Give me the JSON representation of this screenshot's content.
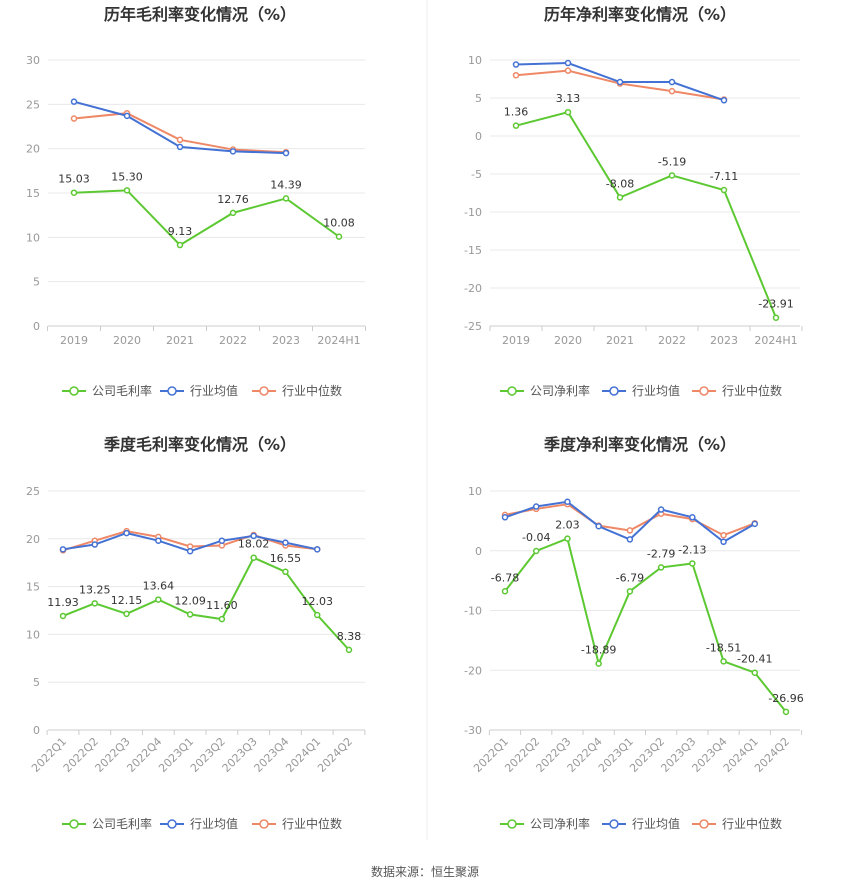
{
  "colors": {
    "company": "#5cc832",
    "industry_avg": "#4472d4",
    "industry_median": "#ee8866",
    "grid": "#e8e8e8",
    "axis": "#999999"
  },
  "legend": {
    "gross": "公司毛利率",
    "net": "公司净利率",
    "avg": "行业均值",
    "median": "行业中位数"
  },
  "source": "数据来源：恒生聚源",
  "chart_data": [
    {
      "type": "line",
      "title": "历年毛利率变化情况（%）",
      "categories": [
        "2019",
        "2020",
        "2021",
        "2022",
        "2023",
        "2024H1"
      ],
      "ylim": [
        0,
        30
      ],
      "yticks": [
        0,
        5,
        10,
        15,
        20,
        25,
        30
      ],
      "rotate_xticks": false,
      "series": [
        {
          "key": "company",
          "name": "公司毛利率",
          "values": [
            15.03,
            15.3,
            9.13,
            12.76,
            14.39,
            10.08
          ],
          "labels": [
            "15.03",
            "15.30",
            "9.13",
            "12.76",
            "14.39",
            "10.08"
          ]
        },
        {
          "key": "industry_avg",
          "name": "行业均值",
          "values": [
            25.3,
            23.7,
            20.2,
            19.7,
            19.5,
            null
          ]
        },
        {
          "key": "industry_median",
          "name": "行业中位数",
          "values": [
            23.4,
            24.0,
            21.0,
            19.9,
            19.6,
            null
          ]
        }
      ]
    },
    {
      "type": "line",
      "title": "历年净利率变化情况（%）",
      "categories": [
        "2019",
        "2020",
        "2021",
        "2022",
        "2023",
        "2024H1"
      ],
      "ylim": [
        -25,
        10
      ],
      "yticks": [
        -25,
        -20,
        -15,
        -10,
        -5,
        0,
        5,
        10
      ],
      "rotate_xticks": false,
      "series": [
        {
          "key": "company",
          "name": "公司净利率",
          "values": [
            1.36,
            3.13,
            -8.08,
            -5.19,
            -7.11,
            -23.91
          ],
          "labels": [
            "1.36",
            "3.13",
            "-8.08",
            "-5.19",
            "-7.11",
            "-23.91"
          ]
        },
        {
          "key": "industry_avg",
          "name": "行业均值",
          "values": [
            9.4,
            9.6,
            7.1,
            7.1,
            4.7,
            null
          ]
        },
        {
          "key": "industry_median",
          "name": "行业中位数",
          "values": [
            8.0,
            8.6,
            6.9,
            5.9,
            4.8,
            null
          ]
        }
      ]
    },
    {
      "type": "line",
      "title": "季度毛利率变化情况（%）",
      "categories": [
        "2022Q1",
        "2022Q2",
        "2022Q3",
        "2022Q4",
        "2023Q1",
        "2023Q2",
        "2023Q3",
        "2023Q4",
        "2024Q1",
        "2024Q2"
      ],
      "ylim": [
        0,
        25
      ],
      "yticks": [
        0,
        5,
        10,
        15,
        20,
        25
      ],
      "rotate_xticks": true,
      "series": [
        {
          "key": "company",
          "name": "公司毛利率",
          "values": [
            11.93,
            13.25,
            12.15,
            13.64,
            12.09,
            11.6,
            18.02,
            16.55,
            12.03,
            8.38
          ],
          "labels": [
            "11.93",
            "13.25",
            "12.15",
            "13.64",
            "12.09",
            "11.60",
            "18.02",
            "16.55",
            "12.03",
            "8.38"
          ]
        },
        {
          "key": "industry_avg",
          "name": "行业均值",
          "values": [
            18.9,
            19.4,
            20.6,
            19.8,
            18.7,
            19.8,
            20.3,
            19.6,
            18.9,
            null
          ]
        },
        {
          "key": "industry_median",
          "name": "行业中位数",
          "values": [
            18.8,
            19.8,
            20.8,
            20.2,
            19.2,
            19.3,
            20.4,
            19.3,
            18.9,
            null
          ]
        }
      ]
    },
    {
      "type": "line",
      "title": "季度净利率变化情况（%）",
      "categories": [
        "2022Q1",
        "2022Q2",
        "2022Q3",
        "2022Q4",
        "2023Q1",
        "2023Q2",
        "2023Q3",
        "2023Q4",
        "2024Q1",
        "2024Q2"
      ],
      "ylim": [
        -30,
        10
      ],
      "yticks": [
        -30,
        -20,
        -10,
        0,
        10
      ],
      "rotate_xticks": true,
      "series": [
        {
          "key": "company",
          "name": "公司净利率",
          "values": [
            -6.78,
            -0.04,
            2.03,
            -18.89,
            -6.79,
            -2.79,
            -2.13,
            -18.51,
            -20.41,
            -26.96
          ],
          "labels": [
            "-6.78",
            "-0.04",
            "2.03",
            "-18.89",
            "-6.79",
            "-2.79",
            "-2.13",
            "-18.51",
            "-20.41",
            "-26.96"
          ]
        },
        {
          "key": "industry_avg",
          "name": "行业均值",
          "values": [
            5.6,
            7.4,
            8.2,
            4.1,
            1.9,
            6.9,
            5.6,
            1.5,
            4.5,
            null
          ]
        },
        {
          "key": "industry_median",
          "name": "行业中位数",
          "values": [
            6.0,
            7.0,
            7.8,
            4.2,
            3.4,
            6.2,
            5.3,
            2.6,
            4.6,
            null
          ]
        }
      ]
    }
  ]
}
